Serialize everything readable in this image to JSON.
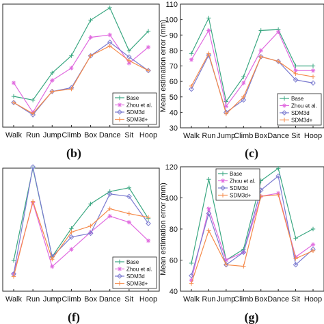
{
  "chart_data": [
    {
      "type": "line",
      "categories": [
        "Walk",
        "Run",
        "Jump",
        "Climb",
        "Box",
        "Dance",
        "Sit",
        "Hoop"
      ],
      "ylabel": "",
      "ylim": [
        0,
        100
      ],
      "show_y_ticks": false,
      "panel_label": "(b)",
      "legend": "bottom-right",
      "series": [
        {
          "name": "Base",
          "values": [
            25,
            22,
            44,
            58,
            87,
            97,
            62,
            78
          ]
        },
        {
          "name": "Zhou et al.",
          "values": [
            36,
            12,
            38,
            48,
            73,
            75,
            52,
            65
          ]
        },
        {
          "name": "SDM3d",
          "values": [
            20,
            10,
            29,
            32,
            58,
            69,
            57,
            46
          ]
        },
        {
          "name": "SDM3d+",
          "values": [
            20,
            11,
            29,
            31,
            58,
            66,
            54,
            46
          ]
        }
      ]
    },
    {
      "type": "line",
      "categories": [
        "Walk",
        "Run",
        "Jump",
        "Climb",
        "Box",
        "Dance",
        "Sit",
        "Hoop"
      ],
      "ylabel": "Mean estimation error (mm)",
      "ylim": [
        30,
        110
      ],
      "yticks": [
        30,
        40,
        50,
        60,
        70,
        80,
        90,
        100,
        110
      ],
      "show_y_ticks": true,
      "panel_label": "(c)",
      "legend": "bottom-right",
      "series": [
        {
          "name": "Base",
          "values": [
            78,
            101,
            47,
            63,
            93,
            93.5,
            70,
            70
          ]
        },
        {
          "name": "Zhou et al.",
          "values": [
            74,
            93,
            44,
            59,
            80,
            92,
            67,
            67
          ]
        },
        {
          "name": "SDM3d",
          "values": [
            55,
            77,
            40,
            48,
            76,
            73,
            61,
            59
          ]
        },
        {
          "name": "SDM3d+",
          "values": [
            57,
            78,
            39,
            50,
            76,
            73,
            65,
            63
          ]
        }
      ]
    },
    {
      "type": "line",
      "categories": [
        "Walk",
        "Run",
        "Jump",
        "Climb",
        "Box",
        "Dance",
        "Sit",
        "Hoop"
      ],
      "ylabel": "",
      "ylim": [
        0,
        100
      ],
      "show_y_ticks": false,
      "panel_label": "(f)",
      "legend": "bottom-right",
      "series": [
        {
          "name": "Base",
          "values": [
            25,
            100,
            28,
            51,
            71,
            81,
            84,
            59
          ]
        },
        {
          "name": "Zhou et al.",
          "values": [
            14,
            72,
            20,
            34,
            48,
            61,
            56,
            41
          ]
        },
        {
          "name": "SDM3d",
          "values": [
            14,
            101,
            28,
            44,
            47,
            79,
            77,
            55
          ]
        },
        {
          "name": "SDM3d+",
          "values": [
            12,
            73,
            26,
            48,
            53,
            67,
            63,
            60
          ]
        }
      ]
    },
    {
      "type": "line",
      "categories": [
        "Walk",
        "Run",
        "Jump",
        "Climb",
        "Box",
        "Dance",
        "Sit",
        "Hoop"
      ],
      "ylabel": "Mean estimation error (mm)",
      "ylim": [
        40,
        120
      ],
      "yticks": [
        40,
        60,
        80,
        100,
        120
      ],
      "show_y_ticks": true,
      "panel_label": "(g)",
      "legend": "top-left",
      "series": [
        {
          "name": "Base",
          "values": [
            58,
            112,
            60,
            67,
            111,
            119,
            74,
            80
          ]
        },
        {
          "name": "Zhou et al.",
          "values": [
            47,
            93,
            60,
            65,
            101,
            103,
            62,
            70
          ]
        },
        {
          "name": "SDM3d",
          "values": [
            50,
            90,
            57,
            65,
            105,
            114,
            57,
            67
          ]
        },
        {
          "name": "SDM3d+",
          "values": [
            45,
            79,
            57,
            56,
            101,
            102,
            61,
            66
          ]
        }
      ]
    }
  ],
  "colors": {
    "Base": "#3aa781",
    "Zhou et al.": "#e06adf",
    "SDM3d": "#7b7bd0",
    "SDM3d+": "#f58a4a"
  },
  "markers": {
    "Base": "plus",
    "Zhou et al.": "star",
    "SDM3d": "diamond",
    "SDM3d+": "plus"
  }
}
